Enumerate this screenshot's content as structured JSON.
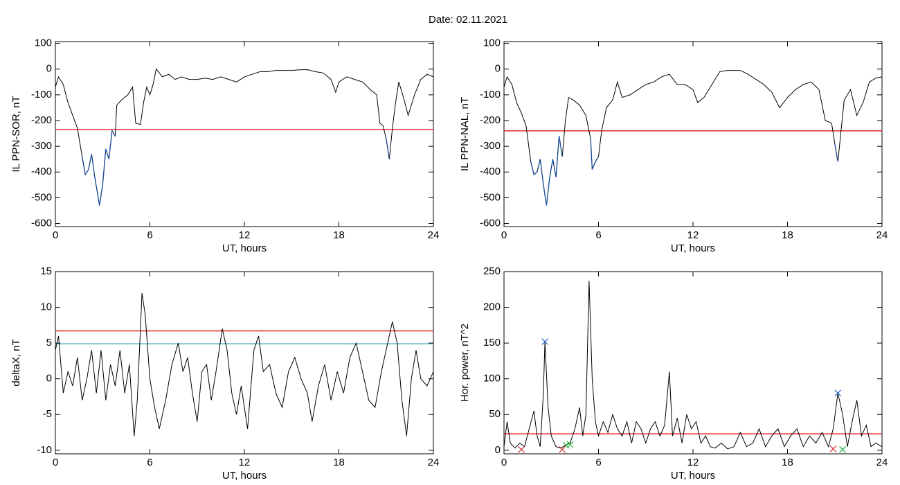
{
  "title": "Date:  02.11.2021",
  "chart_data": [
    {
      "type": "line",
      "xlabel": "UT, hours",
      "ylabel": "IL PPN-SOR, nT",
      "xlim": [
        0,
        24
      ],
      "xticks": [
        0,
        6,
        12,
        18,
        24
      ],
      "ylim": [
        -612,
        107
      ],
      "yticks": [
        100,
        0,
        -100,
        -200,
        -300,
        -400,
        -500,
        -600
      ],
      "hlines": [
        {
          "value": -235,
          "color": "#e00000"
        }
      ],
      "highlight_color": "#1f5fbf",
      "series": [
        {
          "color": "#000000",
          "x": [
            0,
            0.2,
            0.5,
            0.8,
            1.1,
            1.4,
            1.7,
            1.9,
            2.1,
            2.3,
            2.5,
            2.8,
            3.0,
            3.2,
            3.4,
            3.6,
            3.8,
            3.9,
            4.2,
            4.6,
            4.9,
            5.1,
            5.4,
            5.6,
            5.8,
            6.0,
            6.2,
            6.4,
            6.8,
            7.2,
            7.6,
            8.0,
            8.5,
            9.0,
            9.5,
            10.0,
            10.5,
            11.0,
            11.5,
            12.0,
            12.5,
            13,
            13.5,
            14,
            14.5,
            15,
            15.5,
            16,
            16.5,
            17,
            17.5,
            17.8,
            18,
            18.5,
            19,
            19.5,
            20,
            20.4,
            20.6,
            20.8,
            21.0,
            21.2,
            21.4,
            21.6,
            21.8,
            22.1,
            22.4,
            22.8,
            23.2,
            23.6,
            24
          ],
          "values": [
            -70,
            -30,
            -60,
            -130,
            -180,
            -230,
            -340,
            -410,
            -390,
            -330,
            -420,
            -530,
            -450,
            -310,
            -350,
            -240,
            -260,
            -140,
            -120,
            -100,
            -70,
            -210,
            -215,
            -130,
            -70,
            -100,
            -60,
            0,
            -30,
            -20,
            -40,
            -30,
            -40,
            -40,
            -35,
            -40,
            -30,
            -40,
            -50,
            -30,
            -20,
            -10,
            -10,
            -5,
            -5,
            -5,
            -3,
            -2,
            -10,
            -15,
            -40,
            -90,
            -50,
            -30,
            -40,
            -50,
            -80,
            -100,
            -210,
            -220,
            -270,
            -350,
            -230,
            -130,
            -50,
            -110,
            -180,
            -100,
            -40,
            -20,
            -30
          ]
        }
      ]
    },
    {
      "type": "line",
      "xlabel": "UT, hours",
      "ylabel": "IL PPN-NAL, nT",
      "xlim": [
        0,
        24
      ],
      "xticks": [
        0,
        6,
        12,
        18,
        24
      ],
      "ylim": [
        -612,
        107
      ],
      "yticks": [
        100,
        0,
        -100,
        -200,
        -300,
        -400,
        -500,
        -600
      ],
      "hlines": [
        {
          "value": -240,
          "color": "#e00000"
        }
      ],
      "highlight_color": "#1f5fbf",
      "series": [
        {
          "color": "#000000",
          "x": [
            0,
            0.2,
            0.5,
            0.8,
            1.1,
            1.4,
            1.7,
            1.9,
            2.1,
            2.3,
            2.5,
            2.7,
            2.9,
            3.1,
            3.3,
            3.5,
            3.7,
            3.9,
            4.1,
            4.4,
            4.8,
            5.2,
            5.5,
            5.6,
            5.8,
            6.0,
            6.2,
            6.5,
            6.9,
            7.2,
            7.5,
            8.0,
            8.5,
            9,
            9.5,
            10,
            10.5,
            11,
            11.5,
            12,
            12.3,
            12.7,
            13.2,
            13.7,
            14.2,
            15,
            15.5,
            16,
            16.5,
            17,
            17.5,
            18,
            18.5,
            19,
            19.5,
            20,
            20.4,
            20.8,
            21.0,
            21.2,
            21.4,
            21.6,
            22,
            22.4,
            22.8,
            23.2,
            23.6,
            24
          ],
          "values": [
            -70,
            -30,
            -60,
            -130,
            -170,
            -220,
            -360,
            -410,
            -400,
            -350,
            -450,
            -530,
            -420,
            -350,
            -420,
            -260,
            -340,
            -200,
            -110,
            -120,
            -140,
            -180,
            -270,
            -390,
            -360,
            -340,
            -240,
            -150,
            -120,
            -50,
            -110,
            -100,
            -80,
            -60,
            -50,
            -30,
            -20,
            -60,
            -60,
            -80,
            -130,
            -110,
            -60,
            -10,
            -5,
            -5,
            -20,
            -40,
            -60,
            -90,
            -150,
            -110,
            -80,
            -60,
            -50,
            -80,
            -200,
            -210,
            -290,
            -360,
            -240,
            -120,
            -80,
            -180,
            -130,
            -50,
            -35,
            -30
          ]
        }
      ]
    },
    {
      "type": "line",
      "xlabel": "UT, hours",
      "ylabel": "deltaX, nT",
      "xlim": [
        0,
        24
      ],
      "xticks": [
        0,
        6,
        12,
        18,
        24
      ],
      "ylim": [
        -10.5,
        15
      ],
      "yticks": [
        15,
        10,
        5,
        0,
        -5,
        -10
      ],
      "hlines": [
        {
          "value": 6.7,
          "color": "#e00000"
        },
        {
          "value": 4.9,
          "color": "#1a8fa0"
        }
      ],
      "series": [
        {
          "color": "#000000",
          "x": [
            0,
            0.2,
            0.5,
            0.8,
            1.1,
            1.4,
            1.7,
            2.0,
            2.3,
            2.6,
            2.9,
            3.2,
            3.5,
            3.8,
            4.1,
            4.4,
            4.7,
            5.0,
            5.2,
            5.5,
            5.7,
            6.0,
            6.3,
            6.6,
            7.0,
            7.4,
            7.8,
            8.1,
            8.4,
            8.7,
            9.0,
            9.3,
            9.6,
            9.9,
            10.2,
            10.6,
            10.9,
            11.2,
            11.5,
            11.8,
            12.2,
            12.6,
            12.9,
            13.2,
            13.6,
            14.0,
            14.4,
            14.8,
            15.2,
            15.6,
            16.0,
            16.3,
            16.7,
            17.1,
            17.5,
            17.9,
            18.3,
            18.7,
            19.1,
            19.5,
            19.9,
            20.3,
            20.7,
            21.1,
            21.4,
            21.7,
            22.0,
            22.3,
            22.6,
            22.9,
            23.2,
            23.6,
            24
          ],
          "values": [
            4,
            6,
            -2,
            1,
            -1,
            3,
            -3,
            0,
            4,
            -2,
            4,
            -3,
            2,
            -1,
            4,
            -2,
            2,
            -8,
            -3,
            12,
            9,
            0,
            -4,
            -7,
            -3,
            2,
            5,
            1,
            3,
            -2,
            -6,
            1,
            2,
            -3,
            1,
            7,
            4,
            -2,
            -5,
            -1,
            -7,
            4,
            6,
            1,
            2,
            -2,
            -4,
            1,
            3,
            0,
            -2,
            -6,
            -1,
            2,
            -3,
            1,
            -2,
            3,
            5,
            1,
            -3,
            -4,
            1,
            5,
            8,
            5,
            -3,
            -8,
            0,
            4,
            0,
            -1,
            1
          ]
        }
      ]
    },
    {
      "type": "line",
      "xlabel": "UT, hours",
      "ylabel": "Hor. power, nT^2",
      "xlim": [
        0,
        24
      ],
      "xticks": [
        0,
        6,
        12,
        18,
        24
      ],
      "ylim": [
        -5,
        250
      ],
      "yticks": [
        250,
        200,
        150,
        100,
        50,
        0
      ],
      "hlines": [
        {
          "value": 23,
          "color": "#e00000"
        }
      ],
      "series": [
        {
          "color": "#000000",
          "x": [
            0,
            0.2,
            0.4,
            0.7,
            1.0,
            1.3,
            1.6,
            1.9,
            2.1,
            2.3,
            2.5,
            2.6,
            2.8,
            3.0,
            3.3,
            3.6,
            3.9,
            4.2,
            4.5,
            4.8,
            5.0,
            5.2,
            5.4,
            5.6,
            5.8,
            6.0,
            6.3,
            6.6,
            6.9,
            7.2,
            7.5,
            7.8,
            8.1,
            8.4,
            8.7,
            9.0,
            9.3,
            9.6,
            9.9,
            10.2,
            10.5,
            10.7,
            11,
            11.3,
            11.6,
            11.9,
            12.2,
            12.5,
            12.8,
            13.1,
            13.4,
            13.8,
            14.2,
            14.6,
            15.0,
            15.4,
            15.8,
            16.2,
            16.6,
            17,
            17.4,
            17.8,
            18.2,
            18.6,
            19,
            19.4,
            19.8,
            20.2,
            20.6,
            20.9,
            21.2,
            21.5,
            21.8,
            22.1,
            22.4,
            22.7,
            23.0,
            23.3,
            23.6,
            24
          ],
          "values": [
            5,
            40,
            10,
            3,
            10,
            5,
            30,
            55,
            20,
            5,
            80,
            152,
            60,
            20,
            5,
            3,
            7,
            10,
            30,
            60,
            20,
            50,
            237,
            100,
            40,
            20,
            40,
            25,
            50,
            30,
            20,
            40,
            10,
            40,
            30,
            10,
            30,
            40,
            20,
            35,
            110,
            20,
            45,
            10,
            50,
            30,
            40,
            10,
            20,
            5,
            3,
            10,
            2,
            5,
            25,
            5,
            10,
            30,
            5,
            20,
            30,
            5,
            20,
            30,
            5,
            20,
            10,
            25,
            5,
            30,
            80,
            50,
            5,
            40,
            70,
            20,
            35,
            5,
            10,
            5
          ]
        },
        {
          "type": "scatter",
          "color": "#1f6fd0",
          "x": [
            2.6,
            21.2
          ],
          "values": [
            152,
            80
          ]
        },
        {
          "type": "scatter",
          "color": "#20b040",
          "x": [
            3.95,
            4.2,
            21.5
          ],
          "values": [
            7,
            8,
            1
          ]
        },
        {
          "type": "scatter",
          "color": "#d03030",
          "x": [
            1.1,
            3.7,
            20.9
          ],
          "values": [
            1,
            1,
            2
          ]
        }
      ]
    }
  ]
}
